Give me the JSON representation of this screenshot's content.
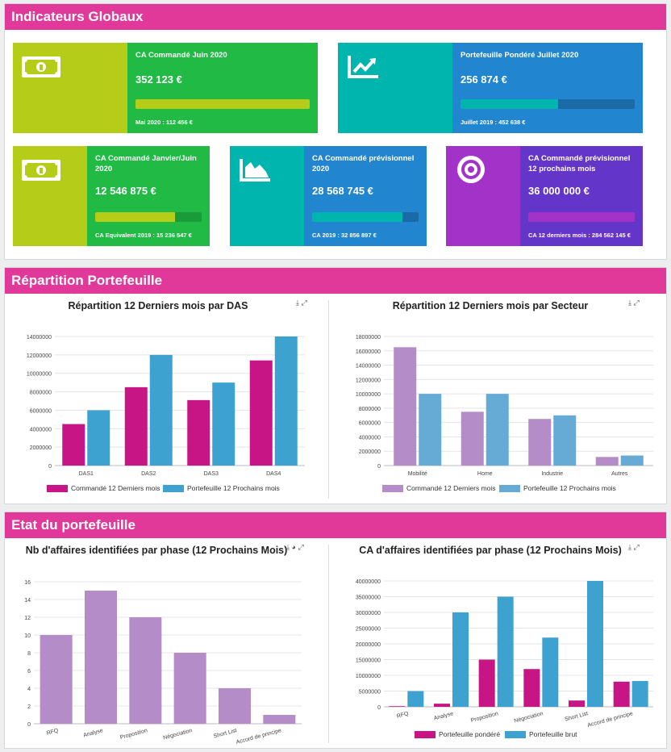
{
  "sections": {
    "globaux": "Indicateurs Globaux",
    "repartition": "Répartition Portefeuille",
    "etat": "Etat du portefeuille"
  },
  "kpis": [
    {
      "title": "CA Commandé Juin 2020",
      "value": "352 123 €",
      "sub": "Mai 2020 : 112 456 €",
      "progress": 1.0,
      "icon": "money-bill-icon",
      "accent": "#b5cc18",
      "body": "#21ba45"
    },
    {
      "title": "Portefeuille Pondéré Juillet 2020",
      "value": "256 874 €",
      "sub": "Juillet 2019 : 452 638 €",
      "progress": 0.56,
      "icon": "chart-line-icon",
      "accent": "#00b5ad",
      "body": "#2185d0"
    },
    {
      "title": "CA Commandé Janvier/Juin 2020",
      "value": "12 546 875 €",
      "sub": "CA Equivalent 2019 : 15 236 547 €",
      "progress": 0.75,
      "icon": "money-bill-icon",
      "accent": "#b5cc18",
      "body": "#21ba45"
    },
    {
      "title": "CA Commandé prévisionnel 2020",
      "value": "28 568 745 €",
      "sub": "CA 2019 : 32 856 897 €",
      "progress": 0.85,
      "icon": "chart-area-icon",
      "accent": "#00b5ad",
      "body": "#2185d0"
    },
    {
      "title": "CA Commandé prévisionnel 12 prochains mois",
      "value": "36 000 000 €",
      "sub": "CA 12 derniers mois : 284 562 145 €",
      "progress": 1.0,
      "icon": "target-icon",
      "accent": "#a333c8",
      "body": "#6435c9"
    }
  ],
  "chart_data": [
    {
      "type": "bar",
      "title": "Répartition 12 Derniers mois par DAS",
      "categories": [
        "DAS1",
        "DAS2",
        "DAS3",
        "DAS4"
      ],
      "series": [
        {
          "name": "Commandé 12 Derniers mois",
          "values": [
            4500000,
            8500000,
            7100000,
            11400000
          ],
          "color": "#c71585"
        },
        {
          "name": "Portefeuille 12 Prochains mois",
          "values": [
            6000000,
            12000000,
            9000000,
            14000000
          ],
          "color": "#3ea2d0"
        }
      ],
      "ylim": [
        0,
        14000000
      ],
      "ticks": [
        0,
        2000000,
        4000000,
        6000000,
        8000000,
        10000000,
        12000000,
        14000000
      ]
    },
    {
      "type": "bar",
      "title": "Répartition 12 Derniers mois par Secteur",
      "categories": [
        "Mobilité",
        "Home",
        "Industrie",
        "Autres"
      ],
      "series": [
        {
          "name": "Commandé 12 Derniers mois",
          "values": [
            16500000,
            7500000,
            6500000,
            1200000
          ],
          "color": "#b48cc8"
        },
        {
          "name": "Portefeuille 12 Prochains mois",
          "values": [
            10000000,
            10000000,
            7000000,
            1400000
          ],
          "color": "#66aad6"
        }
      ],
      "ylim": [
        0,
        18000000
      ],
      "ticks": [
        0,
        2000000,
        4000000,
        6000000,
        8000000,
        10000000,
        12000000,
        14000000,
        16000000,
        18000000
      ]
    },
    {
      "type": "bar",
      "title": "Nb d'affaires identifiées par phase (12 Prochains Mois)",
      "categories": [
        "RFQ",
        "Analyse",
        "Proposition",
        "Négociation",
        "Short List",
        "Accord de principe"
      ],
      "series": [
        {
          "name": "Nb d'affaires",
          "values": [
            10,
            15,
            12,
            8,
            4,
            1
          ],
          "color": "#b48cc8"
        }
      ],
      "ylim": [
        0,
        16
      ],
      "ticks": [
        0,
        2,
        4,
        6,
        8,
        10,
        12,
        14,
        16
      ]
    },
    {
      "type": "bar",
      "title": "CA d'affaires identifiées par phase (12 Prochains Mois)",
      "categories": [
        "RFQ",
        "Analyse",
        "Proposition",
        "Négociation",
        "Short List",
        "Accord de principe"
      ],
      "series": [
        {
          "name": "Portefeuille pondéré",
          "values": [
            200000,
            1000000,
            15000000,
            12000000,
            2000000,
            8000000
          ],
          "color": "#c71585"
        },
        {
          "name": "Portefeuille brut",
          "values": [
            5000000,
            30000000,
            35000000,
            22000000,
            40000000,
            8200000
          ],
          "color": "#3ea2d0"
        }
      ],
      "ylim": [
        0,
        40000000
      ],
      "ticks": [
        0,
        5000000,
        10000000,
        15000000,
        20000000,
        25000000,
        30000000,
        35000000,
        40000000
      ]
    }
  ]
}
